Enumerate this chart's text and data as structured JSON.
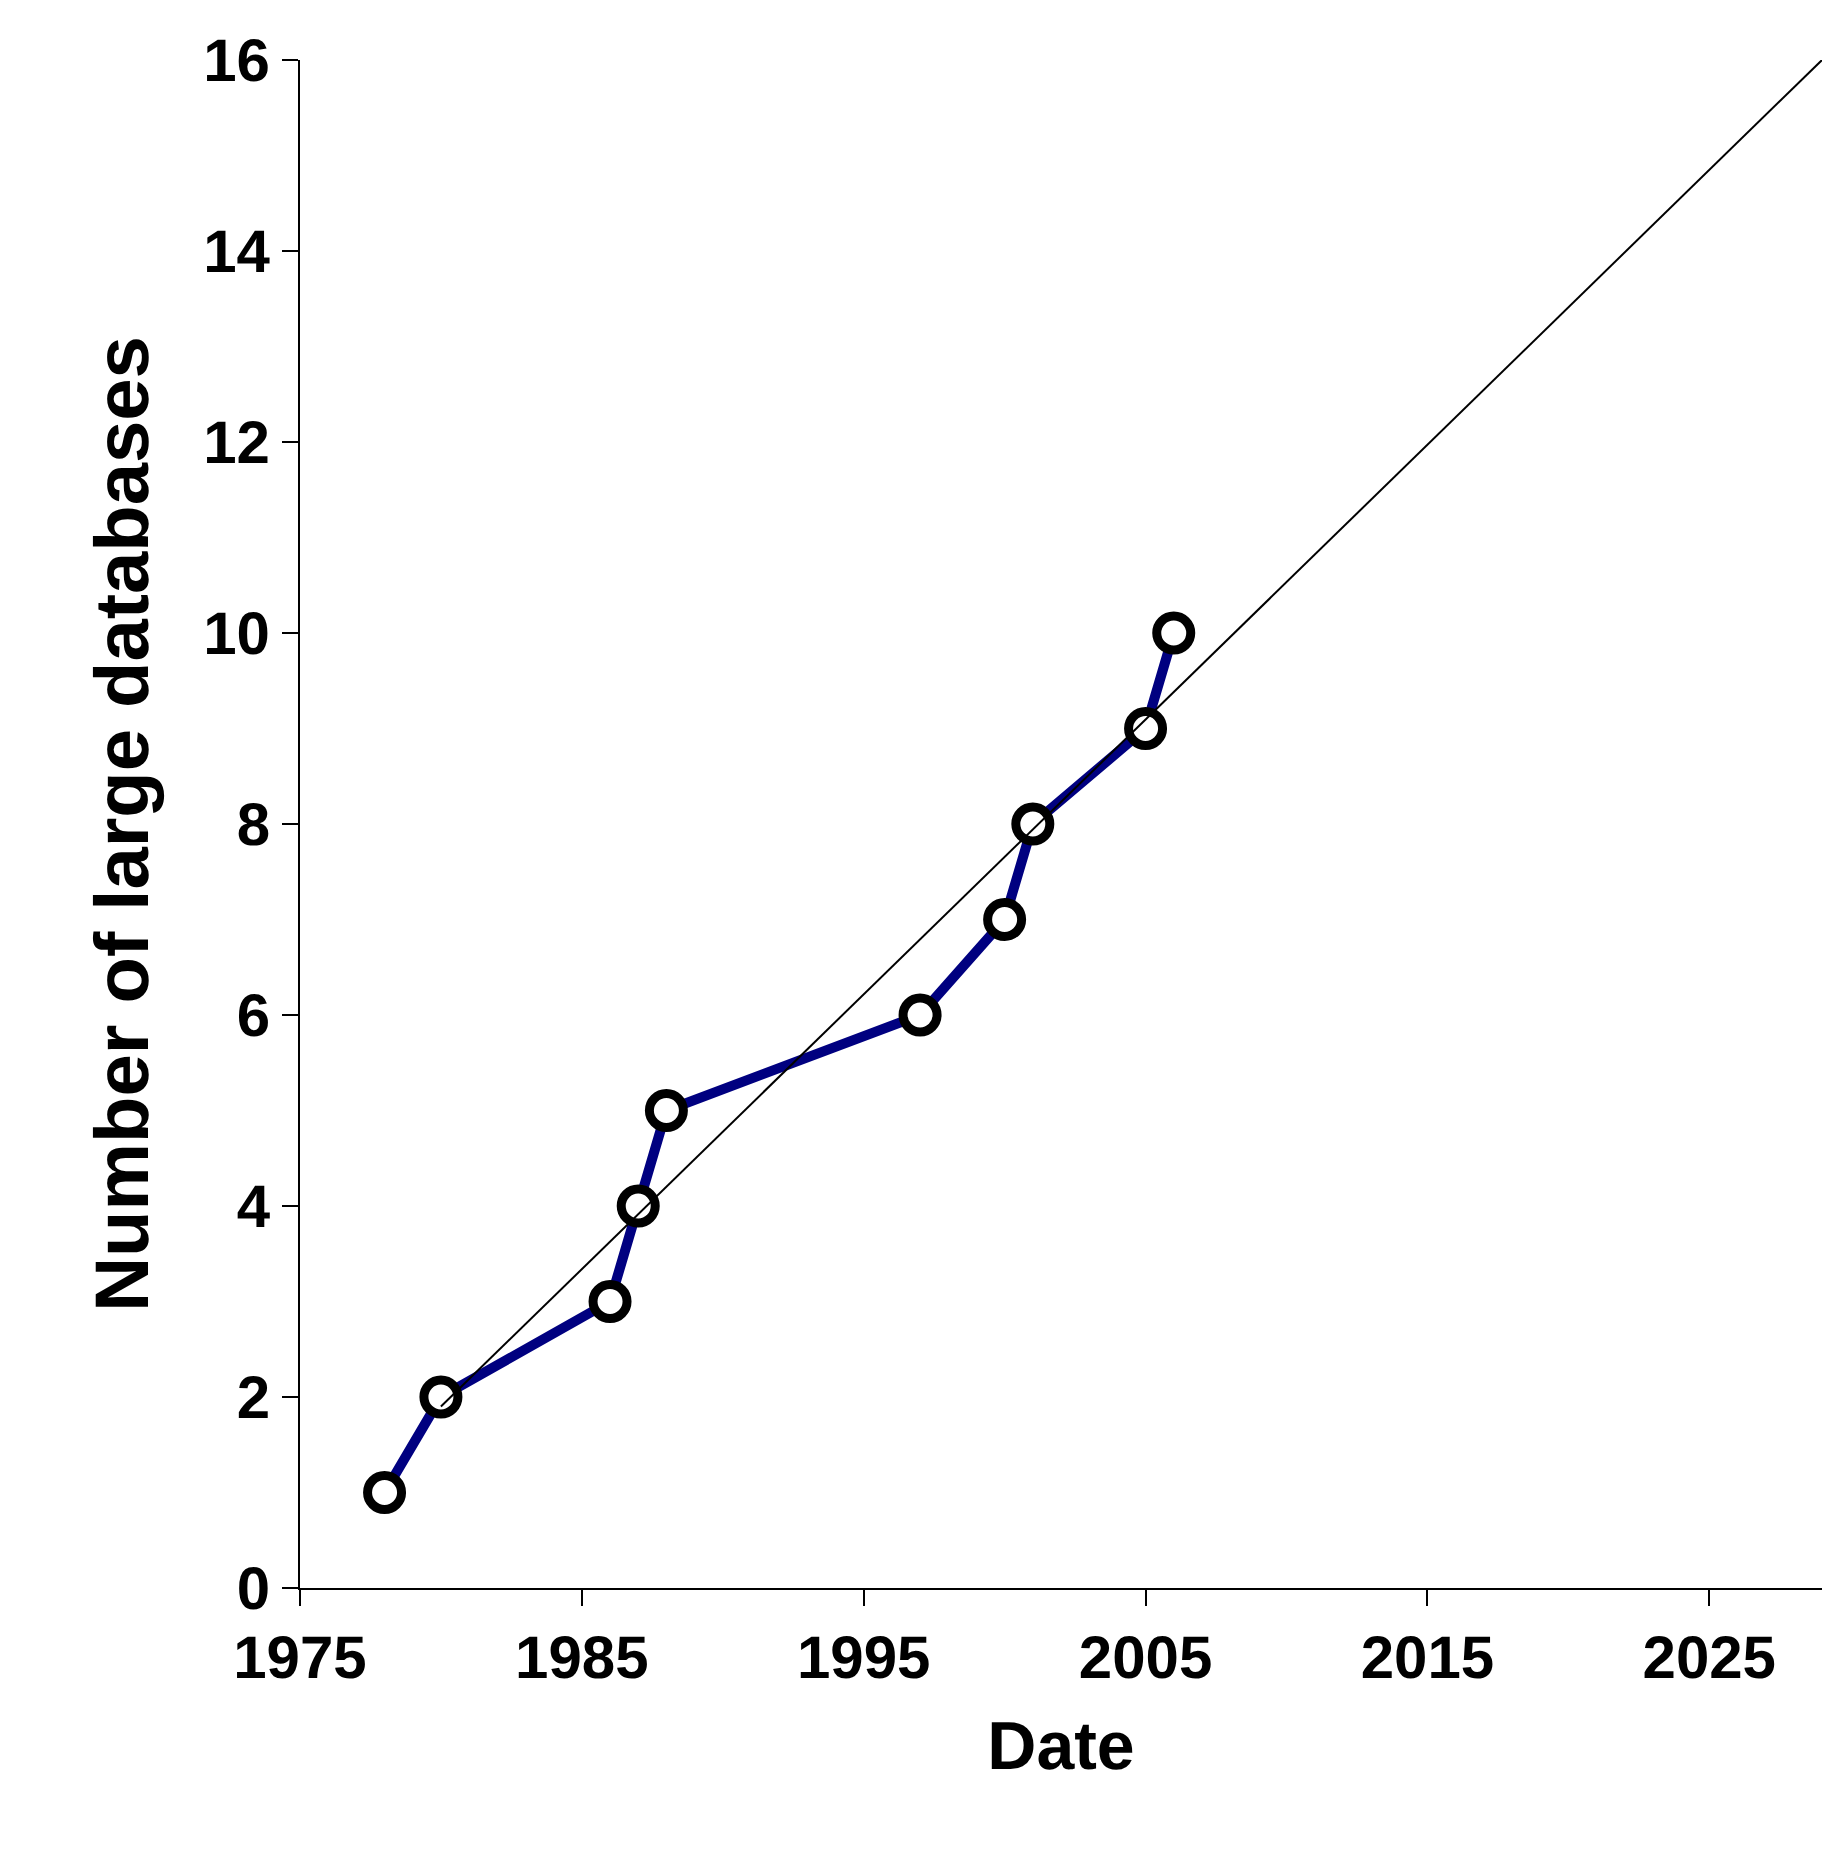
{
  "chart_data": {
    "type": "line",
    "xlabel": "Date",
    "ylabel": "Number of large databases",
    "xlim": [
      1975,
      2029
    ],
    "xticks": [
      1975,
      1985,
      1995,
      2005,
      2015,
      2025
    ],
    "ylim": [
      0,
      16
    ],
    "yticks": [
      0,
      2,
      4,
      6,
      8,
      10,
      12,
      14,
      16
    ],
    "series": [
      {
        "color": "#000080",
        "marker": "circle",
        "x": [
          1978,
          1980,
          1986,
          1987,
          1988,
          1997,
          2000,
          2001,
          2005,
          2006
        ],
        "values": [
          1,
          2,
          3,
          4,
          5,
          6,
          7,
          8,
          9,
          10
        ]
      },
      {
        "color": "#000000",
        "marker": "none",
        "x": [
          1980,
          2029
        ],
        "values": [
          1.9,
          16
        ]
      }
    ]
  }
}
